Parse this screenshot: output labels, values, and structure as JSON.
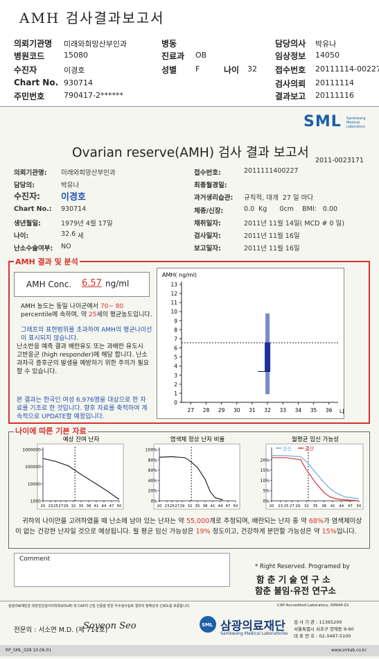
{
  "header": {
    "title": "AMH 검사결과보고서",
    "fields": [
      {
        "label": "의뢰기관명",
        "value": "미래와희망산부인과"
      },
      {
        "label": "병동"
      },
      {
        "label": "담당의사",
        "value": "박유나"
      },
      {
        "label": "병원코드",
        "value": "15080"
      },
      {
        "label": "진료과",
        "value": "OB"
      },
      {
        "label": "임상정보",
        "value": "14050"
      },
      {
        "label": "수진자",
        "value": "이경호"
      },
      {
        "label": "성별",
        "value": "F"
      },
      {
        "label": "나이",
        "value": "32"
      },
      {
        "label": "접수번호",
        "value": "20111114-00227"
      },
      {
        "label": "Chart No.",
        "value": "930714"
      },
      {
        "label": "검사의뢰",
        "value": "20111114"
      },
      {
        "label": "주민번호",
        "value": "790417-2******"
      },
      {
        "label": "결과보고",
        "value": "20111116"
      }
    ]
  },
  "report": {
    "logo": {
      "text": "SML",
      "subtitle": "Samkwang Medical Laboratory"
    },
    "title": "Ovarian reserve(AMH) 검사 결과 보고서",
    "number": "2011-0023171",
    "patient_left": [
      {
        "label": "의뢰기관명:",
        "value": "미래와희망산부인과"
      },
      {
        "label": "담당의:",
        "value": "박유나"
      },
      {
        "label": "수진자:",
        "value": "이경호"
      },
      {
        "label": "Chart No.:",
        "value": "930714"
      },
      {
        "label": "생년월일:",
        "value": "1979년 4월 17일"
      },
      {
        "label": "나이:"
      },
      {
        "label": "난소수술여부:",
        "value": "NO"
      }
    ],
    "age": {
      "value": 32.6,
      "unit": "세"
    },
    "patient_right": [
      {
        "label": "접수번호:",
        "value": "2011111400227"
      },
      {
        "label": "최종월경일:"
      },
      {
        "label": "과거생리습관:",
        "value": "규칙적, 대개  27 일 마다"
      },
      {
        "label": "체중/신장:",
        "value": "0.0  Kg      0cm    BMI:   0.00"
      },
      {
        "label": "채취일자:",
        "value": "2011년 11월 14일( MCD # 0 일)"
      },
      {
        "label": "검사일자:",
        "value": "2011년 11월 16일"
      },
      {
        "label": "보고일자:",
        "value": "2011년 11월 16일"
      }
    ],
    "section1": "AMH 결과 및 분석",
    "amh": {
      "label": "AMH Conc.",
      "value": 6.57,
      "unit": "ng/ml"
    },
    "analysis": [
      {
        "parts": [
          {
            "text": "AMH 농도는 동일 나이군에서 "
          },
          {
            "text": "70~ 80",
            "color": "#d9302c"
          },
          {
            "text": " percentile에 속하며, 약 "
          },
          {
            "text": "25",
            "color": "#d9302c"
          },
          {
            "text": "세의 평균농도입니다."
          }
        ]
      },
      {
        "parts": [
          {
            "text": "그래프의 표현범위를 초과하여 AMH의 평균나이선이 표시되지 않습니다.",
            "color": "#1f4fb0"
          }
        ]
      },
      {
        "parts": [
          {
            "text": "난소반응 예측 결과 배란유도 또는 과배란 유도시 고반응군 (high responder)에 해당 합니다. 난소과자극 증후군의 발생을 예방하기 위한 주의가 필요할 수 있습니다."
          }
        ]
      },
      {
        "parts": [
          {
            "text": "본 결과는 한국인 여성 6,976명을 대상으로 한 자료를 기초로 한 것입니다. 향후 자료를 축적하여 계속적으로 UPDATE할 예정입니다.",
            "color": "#1f4fb0"
          }
        ]
      }
    ],
    "amh_chart": {
      "type": "box",
      "ylabel": "AMH( ng/ml)",
      "xlabel": "나이",
      "xlim": [
        26.4,
        36.6
      ],
      "ylim": [
        0,
        13
      ],
      "xticks": [
        27,
        28,
        29,
        30,
        31,
        32,
        33,
        34,
        35,
        36
      ],
      "yticks": [
        0,
        1,
        2,
        3,
        4,
        5,
        6,
        7,
        8,
        9,
        10,
        11,
        12,
        13
      ],
      "box": {
        "x": 32,
        "whislo": 0.9,
        "q1": 3.4,
        "med": 3.4,
        "q3": 6.6,
        "whishi": 9.8
      },
      "whisker_color": "#7b8cc4",
      "box_color": "#1f2fa0"
    },
    "section2": "나이에 따른 기본 자료",
    "age_charts": [
      {
        "type": "line",
        "title": "예상 잔여 난자",
        "log": true,
        "xlim": [
          20,
          50
        ],
        "ylim": [
          1000,
          1000000
        ],
        "xticks": [
          20,
          23,
          25,
          27,
          29,
          32,
          35,
          38,
          41,
          44,
          47,
          50
        ],
        "yticks": [
          1000,
          10000,
          100000,
          1000000
        ],
        "series": [
          {
            "color": "#222222",
            "x": [
              20,
              25,
              30,
              35,
              40,
              45,
              50
            ],
            "values": [
              300000,
              200000,
              110000,
              35000,
              12000,
              4000,
              1200
            ]
          }
        ]
      },
      {
        "type": "line",
        "title": "염색체 정상 난자 비율",
        "log": false,
        "xlim": [
          20,
          50
        ],
        "ylim": [
          0,
          100
        ],
        "xticks": [
          20,
          23,
          25,
          27,
          29,
          32,
          35,
          38,
          41,
          44,
          47,
          50
        ],
        "yticks": [
          {
            "value": 0,
            "label": "0%"
          },
          {
            "value": 20,
            "label": "20%"
          },
          {
            "value": 40,
            "label": "40%"
          },
          {
            "value": 60,
            "label": "60%"
          },
          {
            "value": 80,
            "label": "80%"
          },
          {
            "value": 100,
            "label": "100%"
          }
        ],
        "series": [
          {
            "color": "#222222",
            "x": [
              20,
              25,
              30,
              32,
              35,
              38,
              40,
              42,
              45
            ],
            "values": [
              85,
              86,
              84,
              78,
              65,
              42,
              18,
              6,
              2
            ]
          }
        ]
      },
      {
        "type": "line",
        "title": "월평균 임신 가능성",
        "log": false,
        "xlim": [
          20,
          50
        ],
        "ylim": [
          0,
          25
        ],
        "xticks": [
          20,
          23,
          25,
          27,
          29,
          32,
          35,
          38,
          41,
          44,
          47,
          50
        ],
        "yticks": [
          {
            "value": 0,
            "label": "0%"
          },
          {
            "value": 5,
            "label": "5%"
          },
          {
            "value": 10,
            "label": "10%"
          },
          {
            "value": 15,
            "label": "15%"
          },
          {
            "value": 20,
            "label": "20%"
          }
        ],
        "series": [
          {
            "name": "임신",
            "color": "#6aa8e0",
            "x": [
              20,
              25,
              30,
              32,
              35,
              38,
              40,
              42,
              45,
              50
            ],
            "values": [
              22,
              22,
              21.5,
              19,
              14,
              9,
              6,
              4,
              2,
              1
            ]
          },
          {
            "name": "출산",
            "color": "#d9302c",
            "x": [
              20,
              25,
              30,
              32,
              35,
              38,
              40,
              42,
              45,
              50
            ],
            "values": [
              21,
              21,
              20,
              15,
              9,
              4,
              2,
              1,
              0.5,
              0
            ]
          }
        ]
      }
    ],
    "summary": [
      {
        "text": "귀하의 나이만을 고려하였을 때 난소에 남아 있는 난자는 약 "
      },
      {
        "text": "55,000",
        "color": "#d9302c"
      },
      {
        "text": "개로 추정되며, 배란되는 난자 중 약 "
      },
      {
        "text": "68%",
        "color": "#d9302c"
      },
      {
        "text": "가 염색체이상이 없는 건강한 난자일 것으로 예상됩니다. 월 평균 임신 가능성은 "
      },
      {
        "text": "19%",
        "color": "#d9302c"
      },
      {
        "text": " 정도이고, 건강하게 분만할 가능성은 약 "
      },
      {
        "text": "15%",
        "color": "#d9302c"
      },
      {
        "text": "입니다."
      }
    ],
    "comment": "Comment",
    "rights": "* Right Reserved. Programed by",
    "lab1": "함 춘 기 술 연 구 소",
    "lab2": "함춘 불임·유전 연구소"
  },
  "footer": {
    "notice": "삼광의료재단은 대한진단검사의학회(KSLM) 및 CAP의 신임 인증을 받은 우수검사실로 결과의 정확성과 신뢰도를 보증합니다.",
    "cap": "CAP Accredited Laboratory,  69944-01",
    "doctor": "전문의 : 서소연 M.D. (제 711호)",
    "signature": "Soyeon Seo",
    "logo_mark": "SML",
    "logo": "삼광의료재단",
    "logo_en": "Samkwang Medical Laboratories",
    "address": [
      "검 사 기 관 : 11365200",
      "서울특별시 서초구 양재동 9-60",
      "대 표 번 호 : 02-3497-5100"
    ],
    "code": "RP_SML_028  10.06.01",
    "url": "www.smlab.co.kr"
  }
}
